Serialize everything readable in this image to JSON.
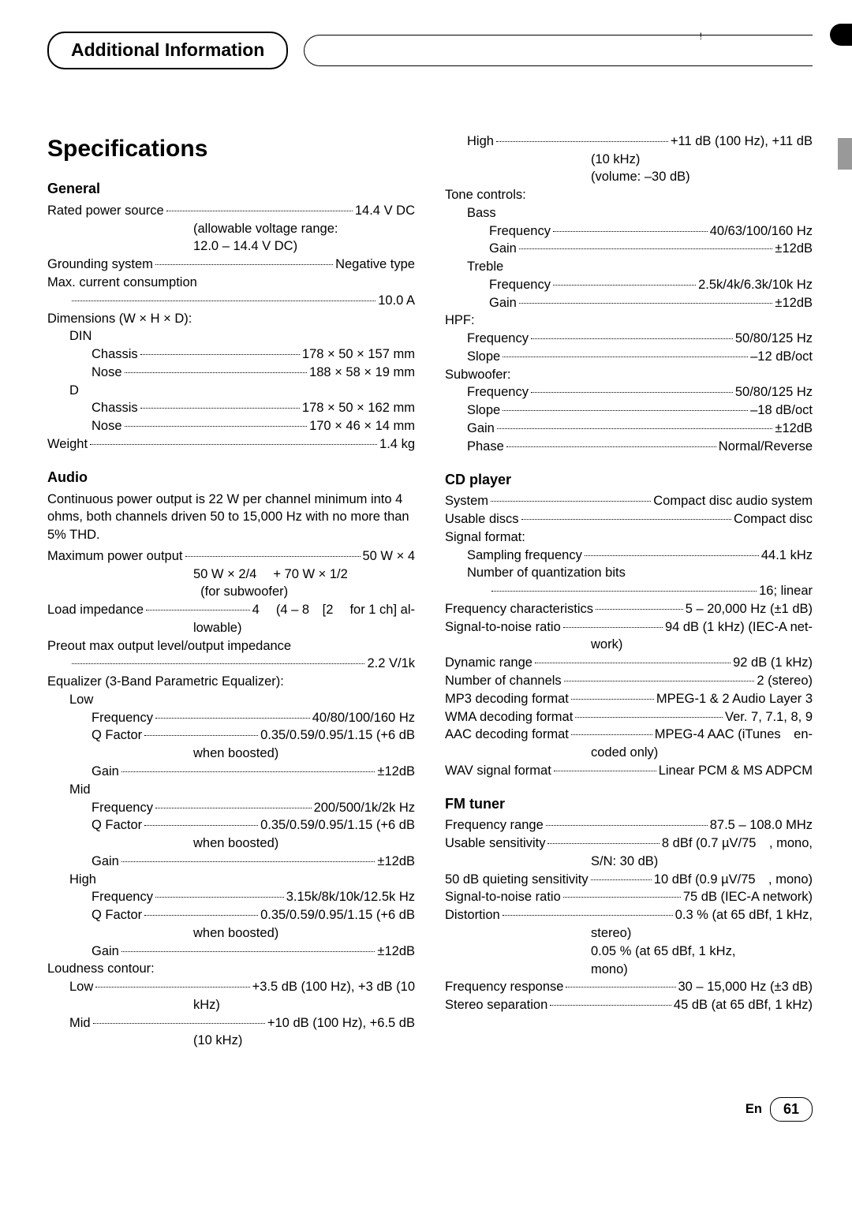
{
  "header": {
    "pill_label": "Additional Information",
    "exclaim": "!"
  },
  "title": "Specifications",
  "general": {
    "heading": "General",
    "rows": [
      {
        "l": "Rated power source",
        "v": "14.4 V DC"
      },
      {
        "cont": "(allowable voltage range:",
        "pad": "valonly"
      },
      {
        "cont": "12.0 – 14.4 V DC)",
        "pad": "valonly"
      },
      {
        "l": "Grounding system",
        "v": "Negative type"
      },
      {
        "plain": "Max. current consumption"
      },
      {
        "l": "",
        "v": "10.0 A",
        "dotsonly": true,
        "pad": "i1"
      },
      {
        "plain": "Dimensions (W × H × D):"
      },
      {
        "plain": "DIN",
        "pad": "i1"
      },
      {
        "l": "Chassis",
        "v": "178 × 50 × 157 mm",
        "pad": "i2"
      },
      {
        "l": "Nose",
        "v": "188 × 58 × 19 mm",
        "pad": "i2"
      },
      {
        "plain": "D",
        "pad": "i1"
      },
      {
        "l": "Chassis",
        "v": "178 × 50 × 162 mm",
        "pad": "i2"
      },
      {
        "l": "Nose",
        "v": "170 × 46 × 14 mm",
        "pad": "i2"
      },
      {
        "l": "Weight",
        "v": "1.4 kg"
      }
    ]
  },
  "audio": {
    "heading": "Audio",
    "intro": "Continuous power output is 22 W per channel minimum into 4 ohms, both channels driven 50 to 15,000 Hz with no more than 5% THD.",
    "rows": [
      {
        "l": "Maximum power output",
        "v": "50 W × 4"
      },
      {
        "cont": "50 W × 2/4  + 70 W × 1/2",
        "pad": "valonly"
      },
      {
        "cont": "  (for subwoofer)",
        "pad": "valonly"
      },
      {
        "l": "Load impedance",
        "v": "4  (4 – 8 [2  for 1 ch] al-"
      },
      {
        "cont": "lowable)",
        "pad": "valonly"
      },
      {
        "plain": "Preout max output level/output impedance"
      },
      {
        "l": "",
        "v": "2.2 V/1k",
        "dotsonly": true,
        "pad": "i1"
      },
      {
        "plain": "Equalizer (3-Band Parametric Equalizer):"
      },
      {
        "plain": "Low",
        "pad": "i1"
      },
      {
        "l": "Frequency",
        "v": "40/80/100/160 Hz",
        "pad": "i2"
      },
      {
        "l": "Q Factor",
        "v": "0.35/0.59/0.95/1.15 (+6 dB",
        "pad": "i2"
      },
      {
        "cont": "when boosted)",
        "pad": "valonly"
      },
      {
        "l": "Gain",
        "v": "±12dB",
        "pad": "i2"
      },
      {
        "plain": "Mid",
        "pad": "i1"
      },
      {
        "l": "Frequency",
        "v": "200/500/1k/2k Hz",
        "pad": "i2"
      },
      {
        "l": "Q Factor",
        "v": "0.35/0.59/0.95/1.15 (+6 dB",
        "pad": "i2"
      },
      {
        "cont": "when boosted)",
        "pad": "valonly"
      },
      {
        "l": "Gain",
        "v": "±12dB",
        "pad": "i2"
      },
      {
        "plain": "High",
        "pad": "i1"
      },
      {
        "l": "Frequency",
        "v": "3.15k/8k/10k/12.5k Hz",
        "pad": "i2"
      },
      {
        "l": "Q Factor",
        "v": "0.35/0.59/0.95/1.15 (+6 dB",
        "pad": "i2"
      },
      {
        "cont": "when boosted)",
        "pad": "valonly"
      },
      {
        "l": "Gain",
        "v": "±12dB",
        "pad": "i2"
      },
      {
        "plain": "Loudness contour:"
      },
      {
        "l": "Low",
        "v": "+3.5 dB (100 Hz), +3 dB (10",
        "pad": "i1"
      },
      {
        "cont": "kHz)",
        "pad": "valonly"
      },
      {
        "l": "Mid",
        "v": "+10 dB (100 Hz), +6.5 dB",
        "pad": "i1"
      },
      {
        "cont": "(10 kHz)",
        "pad": "valonly"
      }
    ]
  },
  "col2a": {
    "rows": [
      {
        "l": "High",
        "v": "+11 dB (100 Hz), +11 dB",
        "pad": "i1"
      },
      {
        "cont": "(10 kHz)",
        "pad": "valonly"
      },
      {
        "cont": "(volume: –30 dB)",
        "pad": "valonly"
      },
      {
        "plain": "Tone controls:"
      },
      {
        "plain": "Bass",
        "pad": "i1"
      },
      {
        "l": "Frequency",
        "v": "40/63/100/160 Hz",
        "pad": "i2"
      },
      {
        "l": "Gain",
        "v": "±12dB",
        "pad": "i2"
      },
      {
        "plain": "Treble",
        "pad": "i1"
      },
      {
        "l": "Frequency",
        "v": "2.5k/4k/6.3k/10k Hz",
        "pad": "i2"
      },
      {
        "l": "Gain",
        "v": "±12dB",
        "pad": "i2"
      },
      {
        "plain": "HPF:"
      },
      {
        "l": "Frequency",
        "v": "50/80/125 Hz",
        "pad": "i1"
      },
      {
        "l": "Slope",
        "v": "–12 dB/oct",
        "pad": "i1"
      },
      {
        "plain": "Subwoofer:"
      },
      {
        "l": "Frequency",
        "v": "50/80/125 Hz",
        "pad": "i1"
      },
      {
        "l": "Slope",
        "v": "–18 dB/oct",
        "pad": "i1"
      },
      {
        "l": "Gain",
        "v": "±12dB",
        "pad": "i1"
      },
      {
        "l": "Phase",
        "v": "Normal/Reverse",
        "pad": "i1"
      }
    ]
  },
  "cd": {
    "heading": "CD player",
    "rows": [
      {
        "l": "System",
        "v": "Compact disc audio system"
      },
      {
        "l": "Usable discs",
        "v": "Compact disc"
      },
      {
        "plain": "Signal format:"
      },
      {
        "l": "Sampling frequency",
        "v": "44.1 kHz",
        "pad": "i1"
      },
      {
        "plain": "Number of quantization bits",
        "pad": "i1"
      },
      {
        "l": "",
        "v": "16; linear",
        "dotsonly": true,
        "pad": "i2"
      },
      {
        "l": "Frequency characteristics",
        "v": "5 – 20,000 Hz (±1 dB)"
      },
      {
        "l": "Signal-to-noise ratio",
        "v": "94 dB (1 kHz) (IEC-A net-"
      },
      {
        "cont": "work)",
        "pad": "valonly"
      },
      {
        "l": "Dynamic range",
        "v": "92 dB (1 kHz)"
      },
      {
        "l": "Number of channels",
        "v": "2 (stereo)"
      },
      {
        "l": "MP3 decoding format",
        "v": "MPEG-1 & 2 Audio Layer 3"
      },
      {
        "l": "WMA decoding format",
        "v": "Ver. 7, 7.1, 8, 9"
      },
      {
        "l": "AAC decoding format",
        "v": "MPEG-4 AAC (iTunes en-"
      },
      {
        "cont": "coded only)",
        "pad": "valonly"
      },
      {
        "l": "WAV signal format",
        "v": "Linear PCM & MS ADPCM"
      }
    ]
  },
  "fm": {
    "heading": "FM tuner",
    "rows": [
      {
        "l": "Frequency range",
        "v": "87.5 – 108.0 MHz"
      },
      {
        "l": "Usable sensitivity",
        "v": "8 dBf (0.7 µV/75 , mono,"
      },
      {
        "cont": "S/N: 30 dB)",
        "pad": "valonly"
      },
      {
        "l": "50 dB quieting sensitivity",
        "v": "10 dBf (0.9 µV/75 , mono)"
      },
      {
        "l": "Signal-to-noise ratio",
        "v": "75 dB (IEC-A network)"
      },
      {
        "l": "Distortion",
        "v": "0.3 % (at 65 dBf, 1 kHz,"
      },
      {
        "cont": "stereo)",
        "pad": "valonly"
      },
      {
        "cont": "0.05 % (at 65 dBf, 1 kHz,",
        "pad": "valonly"
      },
      {
        "cont": "mono)",
        "pad": "valonly"
      },
      {
        "l": "Frequency response",
        "v": "30 – 15,000 Hz (±3 dB)"
      },
      {
        "l": "Stereo separation",
        "v": "45 dB (at 65 dBf, 1 kHz)"
      }
    ]
  },
  "footer": {
    "lang": "En",
    "page": "61"
  }
}
